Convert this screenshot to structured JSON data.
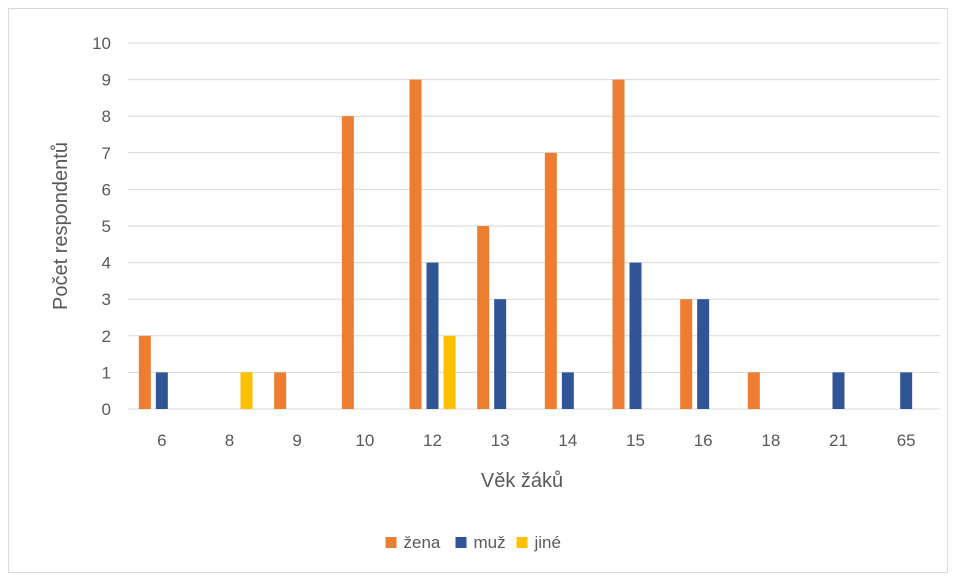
{
  "chart_data": {
    "type": "bar",
    "title": "",
    "xlabel": "Věk žáků",
    "ylabel": "Počet respondentů",
    "ylim": [
      0,
      10
    ],
    "yticks": [
      0,
      1,
      2,
      3,
      4,
      5,
      6,
      7,
      8,
      9,
      10
    ],
    "categories": [
      "6",
      "8",
      "9",
      "10",
      "12",
      "13",
      "14",
      "15",
      "16",
      "18",
      "21",
      "65"
    ],
    "series": [
      {
        "name": "žena",
        "color": "#ED7D31",
        "values": [
          2,
          0,
          1,
          8,
          9,
          5,
          7,
          9,
          3,
          1,
          0,
          0
        ]
      },
      {
        "name": "muž",
        "color": "#2F5597",
        "values": [
          1,
          0,
          0,
          0,
          4,
          3,
          1,
          4,
          3,
          0,
          1,
          1
        ]
      },
      {
        "name": "jiné",
        "color": "#FFC000",
        "values": [
          0,
          1,
          0,
          0,
          2,
          0,
          0,
          0,
          0,
          0,
          0,
          0
        ]
      }
    ],
    "grid": true,
    "legend_position": "bottom"
  }
}
